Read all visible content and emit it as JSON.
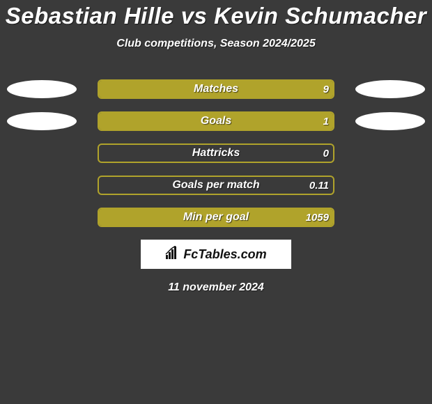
{
  "title": "Sebastian Hille vs Kevin Schumacher",
  "subtitle": "Club competitions, Season 2024/2025",
  "date": "11 november 2024",
  "logo_text": "FcTables.com",
  "colors": {
    "background": "#3a3a3a",
    "ellipse": "#ffffff",
    "bar_fill": "#b0a32b",
    "bar_outline": "#b0a32b",
    "logo_bg": "#ffffff"
  },
  "stats": [
    {
      "label": "Matches",
      "value": "9",
      "left_fill_pct": 0,
      "right_fill_pct": 100,
      "show_left_ellipse": true,
      "show_right_ellipse": true
    },
    {
      "label": "Goals",
      "value": "1",
      "left_fill_pct": 0,
      "right_fill_pct": 100,
      "show_left_ellipse": true,
      "show_right_ellipse": true
    },
    {
      "label": "Hattricks",
      "value": "0",
      "left_fill_pct": 0,
      "right_fill_pct": 0,
      "show_left_ellipse": false,
      "show_right_ellipse": false
    },
    {
      "label": "Goals per match",
      "value": "0.11",
      "left_fill_pct": 0,
      "right_fill_pct": 0,
      "show_left_ellipse": false,
      "show_right_ellipse": false
    },
    {
      "label": "Min per goal",
      "value": "1059",
      "left_fill_pct": 0,
      "right_fill_pct": 100,
      "show_left_ellipse": false,
      "show_right_ellipse": false
    }
  ]
}
